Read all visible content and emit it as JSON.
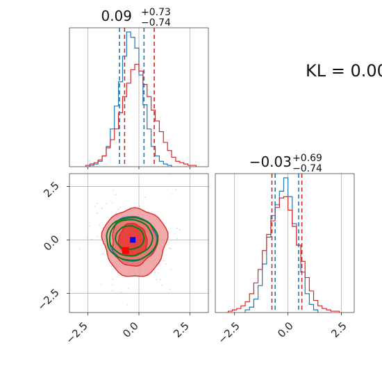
{
  "colors": {
    "blue": "#1f77b4",
    "red": "#d62728",
    "green": "#0b7a1a",
    "pink_fill": "#ef9a9a",
    "red_fill": "#e53935",
    "marker_blue": "#0000ff",
    "marker_red": "#ff0000"
  },
  "kl_label": "KL = 0.00",
  "chart_data": [
    {
      "type": "histogram",
      "panel": "param-1-marginal",
      "title": {
        "median": "0.09",
        "upper": "+0.73",
        "lower": "−0.74"
      },
      "xlim": [
        -3.4,
        3.4
      ],
      "grid": true,
      "series": [
        {
          "color": "blue",
          "quantiles": [
            -0.95,
            0.25
          ],
          "bins": [
            -2.3,
            -2.1,
            -1.9,
            -1.7,
            -1.5,
            -1.3,
            -1.1,
            -0.9,
            -0.7,
            -0.5,
            -0.3,
            -0.1,
            0.1,
            0.3,
            0.5,
            0.7,
            0.9,
            1.1,
            1.3,
            1.5
          ],
          "counts": [
            1,
            2,
            4,
            8,
            15,
            28,
            45,
            63,
            82,
            100,
            96,
            88,
            68,
            46,
            28,
            15,
            8,
            4,
            2,
            1
          ]
        },
        {
          "color": "red",
          "quantiles": [
            -0.7,
            0.75
          ],
          "bins": [
            -2.5,
            -2.3,
            -2.1,
            -1.9,
            -1.7,
            -1.5,
            -1.3,
            -1.1,
            -0.9,
            -0.7,
            -0.5,
            -0.3,
            -0.1,
            0.1,
            0.3,
            0.5,
            0.7,
            0.9,
            1.1,
            1.3,
            1.5,
            1.7,
            1.9,
            2.1,
            2.3,
            2.5,
            2.7
          ],
          "counts": [
            1,
            2,
            3,
            5,
            8,
            14,
            20,
            28,
            40,
            52,
            62,
            72,
            76,
            71,
            61,
            52,
            42,
            34,
            26,
            18,
            12,
            7,
            4,
            3,
            2,
            1,
            1
          ]
        }
      ]
    },
    {
      "type": "histogram",
      "panel": "param-2-marginal",
      "title": {
        "median": "−0.03",
        "upper": "+0.69",
        "lower": "−0.74"
      },
      "xlim": [
        -3.4,
        3.1
      ],
      "xticks": [
        "−2.5",
        "0.0",
        "2.5"
      ],
      "grid": true,
      "series": [
        {
          "color": "blue",
          "quantiles": [
            -0.6,
            0.5
          ],
          "bins": [
            -1.9,
            -1.7,
            -1.5,
            -1.3,
            -1.1,
            -0.9,
            -0.7,
            -0.5,
            -0.3,
            -0.1,
            0.1,
            0.3,
            0.5,
            0.7,
            0.9,
            1.1,
            1.3
          ],
          "counts": [
            2,
            4,
            10,
            20,
            36,
            56,
            72,
            80,
            90,
            100,
            86,
            66,
            50,
            30,
            14,
            6,
            2
          ]
        },
        {
          "color": "red",
          "quantiles": [
            -0.75,
            0.65
          ],
          "bins": [
            -2.7,
            -2.5,
            -2.3,
            -2.1,
            -1.9,
            -1.7,
            -1.5,
            -1.3,
            -1.1,
            -0.9,
            -0.7,
            -0.5,
            -0.3,
            -0.1,
            0.1,
            0.3,
            0.5,
            0.7,
            0.9,
            1.1,
            1.3,
            1.5,
            1.7,
            1.9,
            2.1,
            2.3
          ],
          "counts": [
            1,
            2,
            3,
            5,
            8,
            14,
            22,
            32,
            46,
            58,
            68,
            78,
            85,
            86,
            76,
            64,
            50,
            38,
            26,
            16,
            9,
            5,
            3,
            2,
            1,
            1
          ]
        }
      ]
    },
    {
      "type": "contour",
      "panel": "joint-2d",
      "xlim": [
        -3.4,
        3.4
      ],
      "ylim": [
        -3.4,
        3.1
      ],
      "xticks": [
        "−2.5",
        "0.0",
        "2.5"
      ],
      "yticks": [
        "2.5",
        "0.0",
        "−2.5"
      ],
      "grid": true,
      "red_levels": [
        {
          "center": [
            -0.2,
            -0.1
          ],
          "radii": [
            1.55,
            1.6
          ]
        },
        {
          "center": [
            -0.25,
            -0.05
          ],
          "radii": [
            1.1,
            1.15
          ]
        },
        {
          "center": [
            -0.3,
            0.0
          ],
          "radii": [
            0.7,
            0.75
          ]
        }
      ],
      "green_levels": [
        {
          "center": [
            -0.35,
            0.05
          ],
          "radii": [
            1.25,
            1.0
          ]
        },
        {
          "center": [
            -0.4,
            0.1
          ],
          "radii": [
            1.05,
            0.85
          ]
        },
        {
          "center": [
            -0.45,
            0.1
          ],
          "radii": [
            0.7,
            0.55
          ]
        }
      ],
      "blue_levels": [
        {
          "center": [
            -0.3,
            0.05
          ],
          "radii": [
            1.15,
            1.05
          ]
        }
      ],
      "markers": [
        {
          "color": "marker_blue",
          "x": -0.3,
          "y": 0.0
        },
        {
          "color": "marker_red",
          "x": -0.65,
          "y": -0.5
        }
      ]
    }
  ]
}
